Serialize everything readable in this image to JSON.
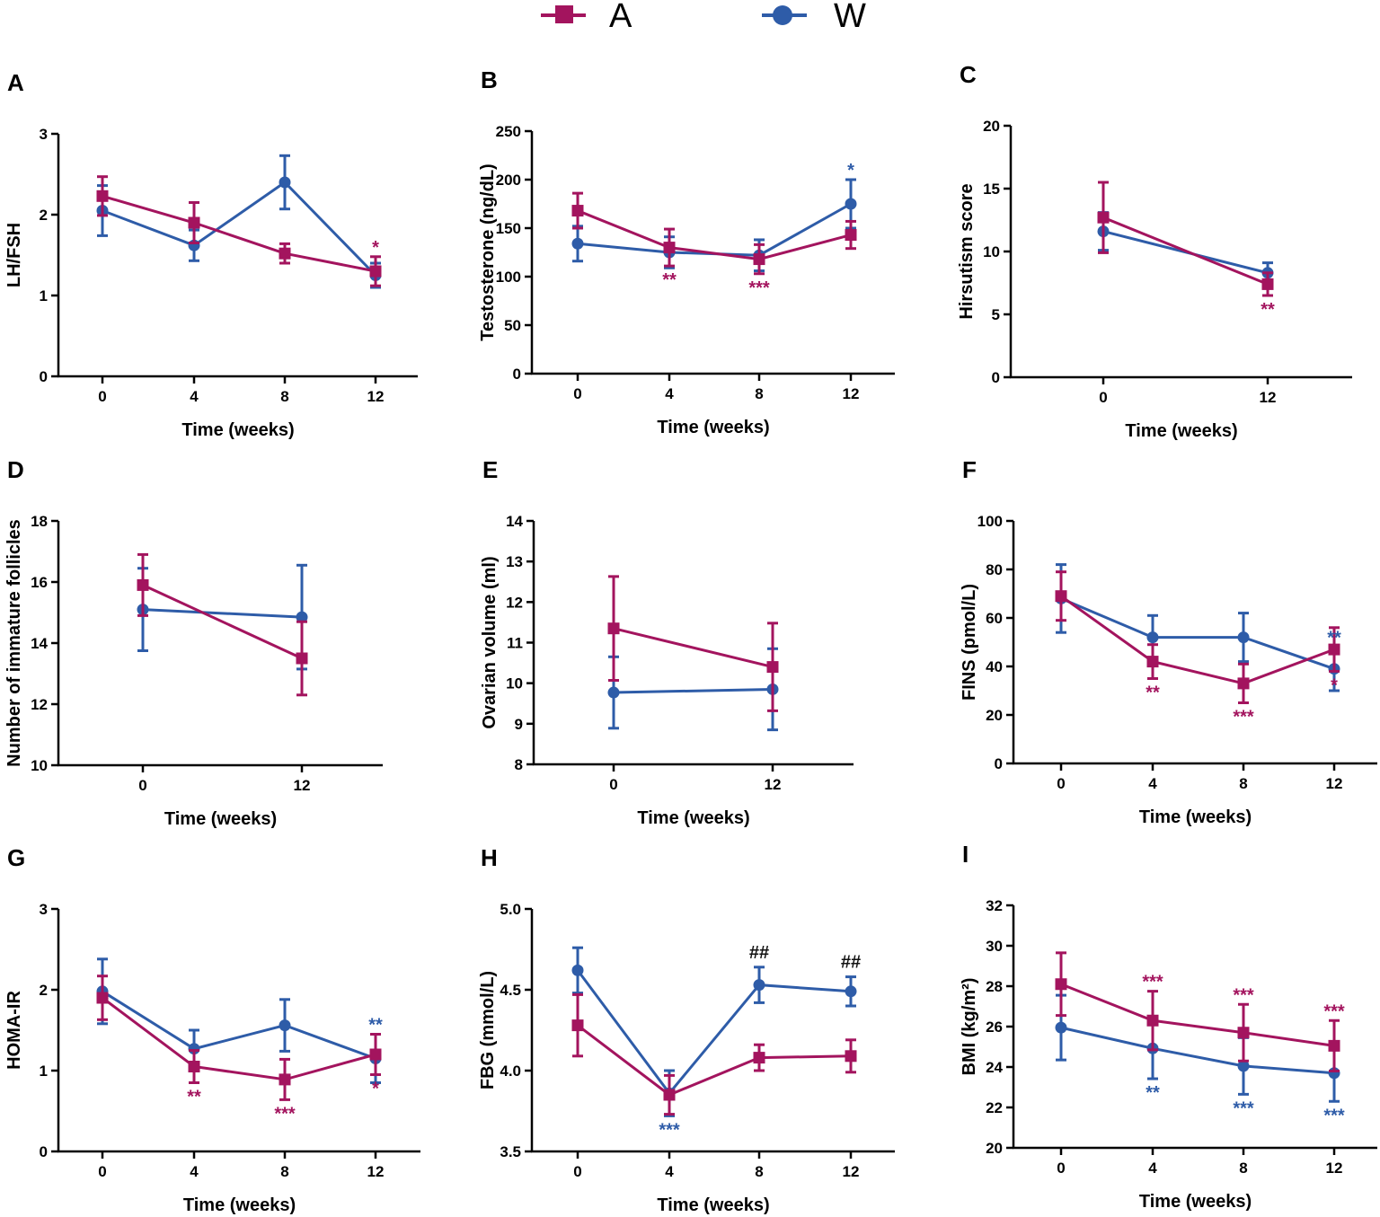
{
  "legend": {
    "items": [
      {
        "label": "A",
        "color": "#a3145e",
        "marker": "square"
      },
      {
        "label": "W",
        "color": "#2e5ca8",
        "marker": "circle"
      }
    ]
  },
  "colors": {
    "A": "#a3145e",
    "W": "#2e5ca8",
    "hash": "#111111"
  },
  "chart_data": [
    {
      "panel": "A",
      "type": "line",
      "xlabel": "Time (weeks)",
      "ylabel": "LH/FSH",
      "categories": [
        "0",
        "4",
        "8",
        "12"
      ],
      "ylim": [
        0,
        3
      ],
      "yticks": [
        0,
        1,
        2,
        3
      ],
      "series": [
        {
          "name": "A",
          "values": [
            2.23,
            1.9,
            1.52,
            1.3
          ],
          "err": [
            0.24,
            0.25,
            0.12,
            0.18
          ]
        },
        {
          "name": "W",
          "values": [
            2.05,
            1.62,
            2.4,
            1.25
          ],
          "err": [
            0.31,
            0.19,
            0.33,
            0.15
          ]
        }
      ],
      "annotations": [
        {
          "series": "A",
          "index": 3,
          "text": "*",
          "pos": "above"
        }
      ]
    },
    {
      "panel": "B",
      "type": "line",
      "xlabel": "Time (weeks)",
      "ylabel": "Testosterone (ng/dL)",
      "categories": [
        "0",
        "4",
        "8",
        "12"
      ],
      "ylim": [
        0,
        250
      ],
      "yticks": [
        0,
        50,
        100,
        150,
        200,
        250
      ],
      "series": [
        {
          "name": "A",
          "values": [
            168,
            130,
            118,
            143
          ],
          "err": [
            18,
            19,
            15,
            14
          ]
        },
        {
          "name": "W",
          "values": [
            134,
            125,
            122,
            175
          ],
          "err": [
            18,
            16,
            16,
            25
          ]
        }
      ],
      "annotations": [
        {
          "series": "A",
          "index": 1,
          "text": "**",
          "pos": "below"
        },
        {
          "series": "A",
          "index": 2,
          "text": "***",
          "pos": "below"
        },
        {
          "series": "W",
          "index": 3,
          "text": "*",
          "pos": "above"
        }
      ]
    },
    {
      "panel": "C",
      "type": "line",
      "xlabel": "Time (weeks)",
      "ylabel": "Hirsutism score",
      "categories": [
        "0",
        "12"
      ],
      "ylim": [
        0,
        20
      ],
      "yticks": [
        0,
        5,
        10,
        15,
        20
      ],
      "series": [
        {
          "name": "A",
          "values": [
            12.7,
            7.4
          ],
          "err": [
            2.8,
            0.9
          ]
        },
        {
          "name": "W",
          "values": [
            11.6,
            8.3
          ],
          "err": [
            1.5,
            0.8
          ]
        }
      ],
      "annotations": [
        {
          "series": "A",
          "index": 1,
          "text": "**",
          "pos": "below"
        }
      ]
    },
    {
      "panel": "D",
      "type": "line",
      "xlabel": "Time (weeks)",
      "ylabel": "Number of immature follicles",
      "categories": [
        "0",
        "12"
      ],
      "ylim": [
        10,
        18
      ],
      "yticks": [
        10,
        12,
        14,
        16,
        18
      ],
      "series": [
        {
          "name": "A",
          "values": [
            15.9,
            13.5
          ],
          "err": [
            1.0,
            1.2
          ]
        },
        {
          "name": "W",
          "values": [
            15.1,
            14.85
          ],
          "err": [
            1.35,
            1.7
          ]
        }
      ],
      "annotations": []
    },
    {
      "panel": "E",
      "type": "line",
      "xlabel": "Time (weeks)",
      "ylabel": "Ovarian volume (ml)",
      "categories": [
        "0",
        "12"
      ],
      "ylim": [
        8,
        14
      ],
      "yticks": [
        8,
        9,
        10,
        11,
        12,
        13,
        14
      ],
      "series": [
        {
          "name": "A",
          "values": [
            11.35,
            10.4
          ],
          "err": [
            1.28,
            1.08
          ]
        },
        {
          "name": "W",
          "values": [
            9.77,
            9.85
          ],
          "err": [
            0.88,
            1.0
          ]
        }
      ],
      "annotations": []
    },
    {
      "panel": "F",
      "type": "line",
      "xlabel": "Time (weeks)",
      "ylabel": "FINS  (pmol/L)",
      "categories": [
        "0",
        "4",
        "8",
        "12"
      ],
      "ylim": [
        0,
        100
      ],
      "yticks": [
        0,
        20,
        40,
        60,
        80,
        100
      ],
      "series": [
        {
          "name": "A",
          "values": [
            69,
            42,
            33,
            47
          ],
          "err": [
            10,
            7,
            8,
            9
          ]
        },
        {
          "name": "W",
          "values": [
            68,
            52,
            52,
            39
          ],
          "err": [
            14,
            9,
            10,
            9
          ]
        }
      ],
      "annotations": [
        {
          "series": "A",
          "index": 1,
          "text": "**",
          "pos": "below"
        },
        {
          "series": "A",
          "index": 2,
          "text": "***",
          "pos": "below"
        },
        {
          "series": "A",
          "index": 3,
          "text": "*",
          "pos": "below"
        },
        {
          "series": "W",
          "index": 3,
          "text": "**",
          "pos": "above"
        }
      ]
    },
    {
      "panel": "G",
      "type": "line",
      "xlabel": "Time (weeks)",
      "ylabel": "HOMA-IR",
      "categories": [
        "0",
        "4",
        "8",
        "12"
      ],
      "ylim": [
        0,
        3
      ],
      "yticks": [
        0,
        1,
        2,
        3
      ],
      "series": [
        {
          "name": "A",
          "values": [
            1.9,
            1.05,
            0.89,
            1.2
          ],
          "err": [
            0.27,
            0.2,
            0.25,
            0.25
          ]
        },
        {
          "name": "W",
          "values": [
            1.98,
            1.27,
            1.56,
            1.15
          ],
          "err": [
            0.4,
            0.23,
            0.32,
            0.3
          ]
        }
      ],
      "annotations": [
        {
          "series": "A",
          "index": 1,
          "text": "**",
          "pos": "below"
        },
        {
          "series": "A",
          "index": 2,
          "text": "***",
          "pos": "below"
        },
        {
          "series": "A",
          "index": 3,
          "text": "*",
          "pos": "below"
        },
        {
          "series": "W",
          "index": 3,
          "text": "**",
          "pos": "above"
        }
      ]
    },
    {
      "panel": "H",
      "type": "line",
      "xlabel": "Time (weeks)",
      "ylabel": "FBG (mmol/L)",
      "categories": [
        "0",
        "4",
        "8",
        "12"
      ],
      "ylim": [
        3.5,
        5.0
      ],
      "yticks": [
        3.5,
        4.0,
        4.5,
        5.0
      ],
      "series": [
        {
          "name": "A",
          "values": [
            4.28,
            3.85,
            4.08,
            4.09
          ],
          "err": [
            0.19,
            0.12,
            0.08,
            0.1
          ]
        },
        {
          "name": "W",
          "values": [
            4.62,
            3.86,
            4.53,
            4.49
          ],
          "err": [
            0.14,
            0.14,
            0.11,
            0.09
          ]
        }
      ],
      "annotations": [
        {
          "series": "W",
          "index": 1,
          "text": "***",
          "pos": "below"
        },
        {
          "series": "W",
          "index": 2,
          "text": "##",
          "pos": "above",
          "color": "hash"
        },
        {
          "series": "W",
          "index": 3,
          "text": "##",
          "pos": "above",
          "color": "hash"
        }
      ]
    },
    {
      "panel": "I",
      "type": "line",
      "xlabel": "Time (weeks)",
      "ylabel": "BMI (kg/m²)",
      "categories": [
        "0",
        "4",
        "8",
        "12"
      ],
      "ylim": [
        20,
        32
      ],
      "yticks": [
        20,
        22,
        24,
        26,
        28,
        30,
        32
      ],
      "series": [
        {
          "name": "A",
          "values": [
            28.1,
            26.3,
            25.7,
            25.05
          ],
          "err": [
            1.55,
            1.45,
            1.4,
            1.25
          ]
        },
        {
          "name": "W",
          "values": [
            25.95,
            24.92,
            24.05,
            23.7
          ],
          "err": [
            1.6,
            1.5,
            1.4,
            1.4
          ]
        }
      ],
      "annotations": [
        {
          "series": "A",
          "index": 1,
          "text": "***",
          "pos": "above"
        },
        {
          "series": "A",
          "index": 2,
          "text": "***",
          "pos": "above"
        },
        {
          "series": "A",
          "index": 3,
          "text": "***",
          "pos": "above"
        },
        {
          "series": "W",
          "index": 1,
          "text": "**",
          "pos": "below"
        },
        {
          "series": "W",
          "index": 2,
          "text": "***",
          "pos": "below"
        },
        {
          "series": "W",
          "index": 3,
          "text": "***",
          "pos": "below"
        }
      ]
    }
  ]
}
